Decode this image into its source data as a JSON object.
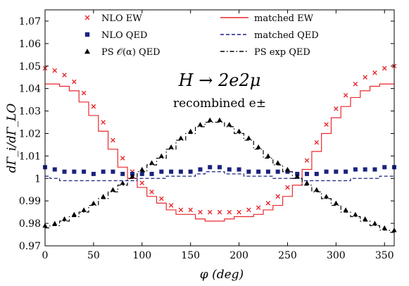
{
  "chart_data": {
    "type": "scatter",
    "xlabel": "φ (deg)",
    "ylabel": "dΓ_i/dΓ_LO",
    "xlim": [
      0,
      360
    ],
    "ylim": [
      0.97,
      1.075
    ],
    "xticks": [
      "0",
      "50",
      "100",
      "150",
      "200",
      "250",
      "300",
      "350"
    ],
    "yticks": [
      "0.97",
      "0.98",
      "0.99",
      "1",
      "1.01",
      "1.02",
      "1.03",
      "1.04",
      "1.05",
      "1.06",
      "1.07"
    ],
    "annotation_main": "H → 2e2μ",
    "annotation_sub": "recombined e±",
    "legend": [
      {
        "label": "NLO EW",
        "marker": "x",
        "color": "#e8292e"
      },
      {
        "label": "NLO QED",
        "marker": "square",
        "color": "#1a237e"
      },
      {
        "label": "PS 𝒪(α) QED",
        "marker": "triangle",
        "color": "#000000"
      },
      {
        "label": "matched EW",
        "line": "solid",
        "color": "#e8292e"
      },
      {
        "label": "matched QED",
        "line": "dashed",
        "color": "#1a237e"
      },
      {
        "label": "PS exp QED",
        "line": "dashdot",
        "color": "#000000"
      }
    ],
    "x": [
      0,
      10,
      20,
      30,
      40,
      50,
      60,
      70,
      80,
      90,
      100,
      110,
      120,
      130,
      140,
      150,
      160,
      170,
      180,
      190,
      200,
      210,
      220,
      230,
      240,
      250,
      260,
      270,
      280,
      290,
      300,
      310,
      320,
      330,
      340,
      350,
      360
    ],
    "series": [
      {
        "name": "NLO EW",
        "style": "x-marker",
        "color": "#e8292e",
        "values": [
          1.049,
          1.048,
          1.046,
          1.043,
          1.038,
          1.032,
          1.025,
          1.017,
          1.009,
          1.003,
          0.998,
          0.994,
          0.991,
          0.988,
          0.986,
          0.986,
          0.985,
          0.985,
          0.985,
          0.985,
          0.985,
          0.986,
          0.987,
          0.989,
          0.992,
          0.996,
          1.001,
          1.008,
          1.016,
          1.024,
          1.031,
          1.037,
          1.042,
          1.045,
          1.047,
          1.049,
          1.05
        ]
      },
      {
        "name": "NLO QED",
        "style": "square-marker",
        "color": "#1a237e",
        "values": [
          1.005,
          1.004,
          1.003,
          1.003,
          1.003,
          1.002,
          1.003,
          1.003,
          1.002,
          1.002,
          1.002,
          1.002,
          1.003,
          1.003,
          1.003,
          1.003,
          1.004,
          1.005,
          1.005,
          1.004,
          1.004,
          1.003,
          1.003,
          1.003,
          1.003,
          1.003,
          1.002,
          1.002,
          1.002,
          1.003,
          1.003,
          1.003,
          1.004,
          1.004,
          1.004,
          1.005,
          1.005
        ]
      },
      {
        "name": "PS 𝒪(α) QED",
        "style": "triangle-marker",
        "color": "#000000",
        "values": [
          0.979,
          0.98,
          0.982,
          0.984,
          0.986,
          0.989,
          0.992,
          0.995,
          0.998,
          1.001,
          1.004,
          1.007,
          1.01,
          1.014,
          1.018,
          1.021,
          1.024,
          1.026,
          1.026,
          1.024,
          1.021,
          1.018,
          1.014,
          1.01,
          1.007,
          1.004,
          1.001,
          0.998,
          0.995,
          0.992,
          0.989,
          0.986,
          0.984,
          0.982,
          0.98,
          0.978,
          0.977
        ]
      },
      {
        "name": "matched EW",
        "style": "solid-step",
        "color": "#e8292e",
        "values": [
          1.042,
          1.042,
          1.041,
          1.039,
          1.034,
          1.028,
          1.021,
          1.013,
          1.005,
          1.0,
          0.996,
          0.992,
          0.989,
          0.986,
          0.984,
          0.984,
          0.982,
          0.981,
          0.981,
          0.982,
          0.983,
          0.983,
          0.984,
          0.986,
          0.988,
          0.992,
          0.997,
          1.004,
          1.012,
          1.02,
          1.027,
          1.032,
          1.036,
          1.039,
          1.041,
          1.042,
          1.042
        ]
      },
      {
        "name": "matched QED",
        "style": "dashed-step",
        "color": "#1a237e",
        "values": [
          1.001,
          1.0,
          0.999,
          0.999,
          0.999,
          0.999,
          0.999,
          0.999,
          0.999,
          0.999,
          1.0,
          1.0,
          1.0,
          1.001,
          1.001,
          1.001,
          1.002,
          1.003,
          1.003,
          1.002,
          1.002,
          1.001,
          1.001,
          1.001,
          1.0,
          1.0,
          1.0,
          0.999,
          0.999,
          0.999,
          0.999,
          0.999,
          1.0,
          1.0,
          1.0,
          1.001,
          1.001
        ]
      },
      {
        "name": "PS exp QED",
        "style": "dashdot-step",
        "color": "#000000",
        "values": [
          0.978,
          0.979,
          0.981,
          0.983,
          0.985,
          0.988,
          0.991,
          0.994,
          0.997,
          1.0,
          1.003,
          1.006,
          1.009,
          1.013,
          1.017,
          1.02,
          1.023,
          1.025,
          1.025,
          1.023,
          1.02,
          1.017,
          1.013,
          1.009,
          1.006,
          1.003,
          1.0,
          0.997,
          0.994,
          0.991,
          0.988,
          0.985,
          0.983,
          0.981,
          0.979,
          0.977,
          0.976
        ]
      }
    ]
  }
}
